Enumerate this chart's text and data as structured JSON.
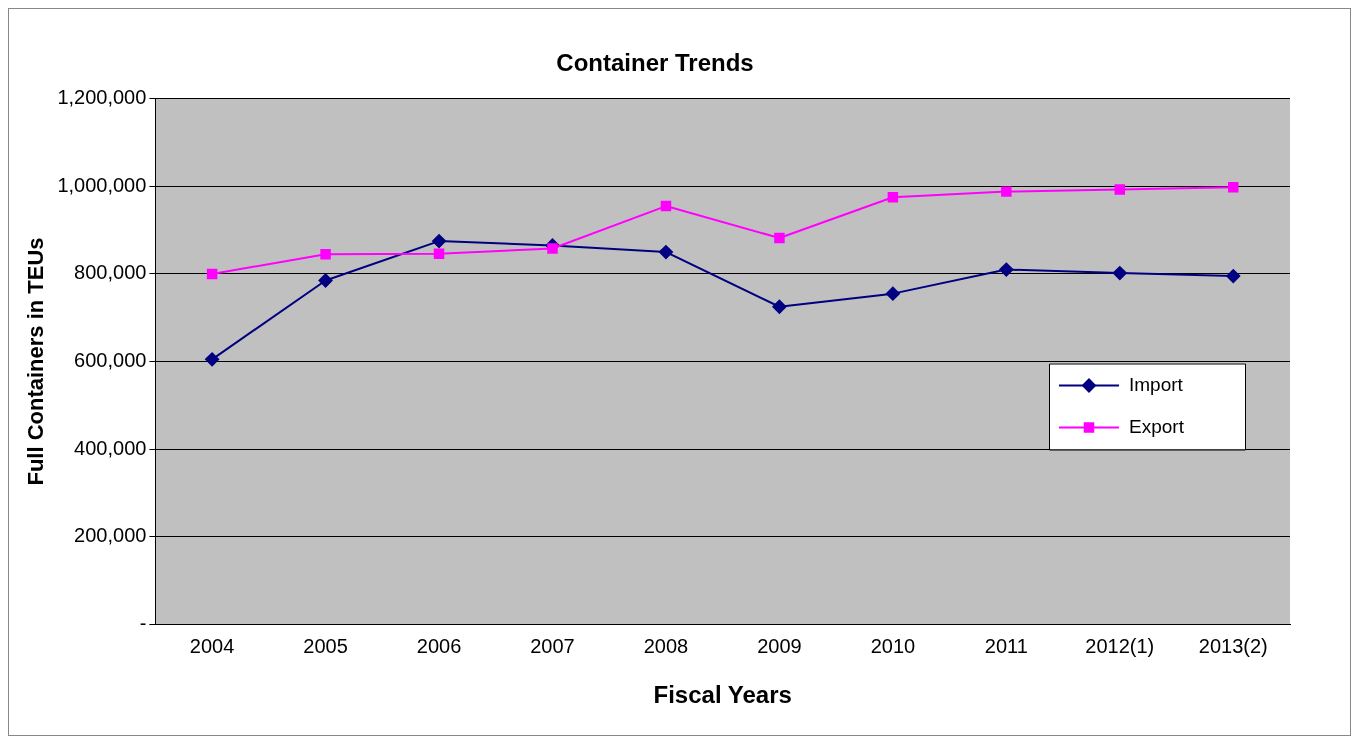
{
  "chart_data": {
    "type": "line",
    "title": "Container Trends",
    "xlabel": "Fiscal Years",
    "ylabel": "Full Containers in TEUs",
    "categories": [
      "2004",
      "2005",
      "2006",
      "2007",
      "2008",
      "2009",
      "2010",
      "2011",
      "2012(1)",
      "2013(2)"
    ],
    "series": [
      {
        "name": "Import",
        "color": "#000080",
        "marker": "diamond",
        "values": [
          605000,
          785000,
          875000,
          865000,
          850000,
          725000,
          755000,
          810000,
          802000,
          795000
        ]
      },
      {
        "name": "Export",
        "color": "#ff00ff",
        "marker": "square",
        "values": [
          800000,
          845000,
          846000,
          858000,
          955000,
          882000,
          975000,
          988000,
          993000,
          998000
        ]
      }
    ],
    "ylim": [
      0,
      1200000
    ],
    "yticks": [
      {
        "value": 0,
        "label": "-"
      },
      {
        "value": 200000,
        "label": "200,000"
      },
      {
        "value": 400000,
        "label": "400,000"
      },
      {
        "value": 600000,
        "label": "600,000"
      },
      {
        "value": 800000,
        "label": "800,000"
      },
      {
        "value": 1000000,
        "label": "1,000,000"
      },
      {
        "value": 1200000,
        "label": "1,200,000"
      }
    ],
    "grid": "y",
    "legend": "right",
    "line_style": "solid"
  }
}
